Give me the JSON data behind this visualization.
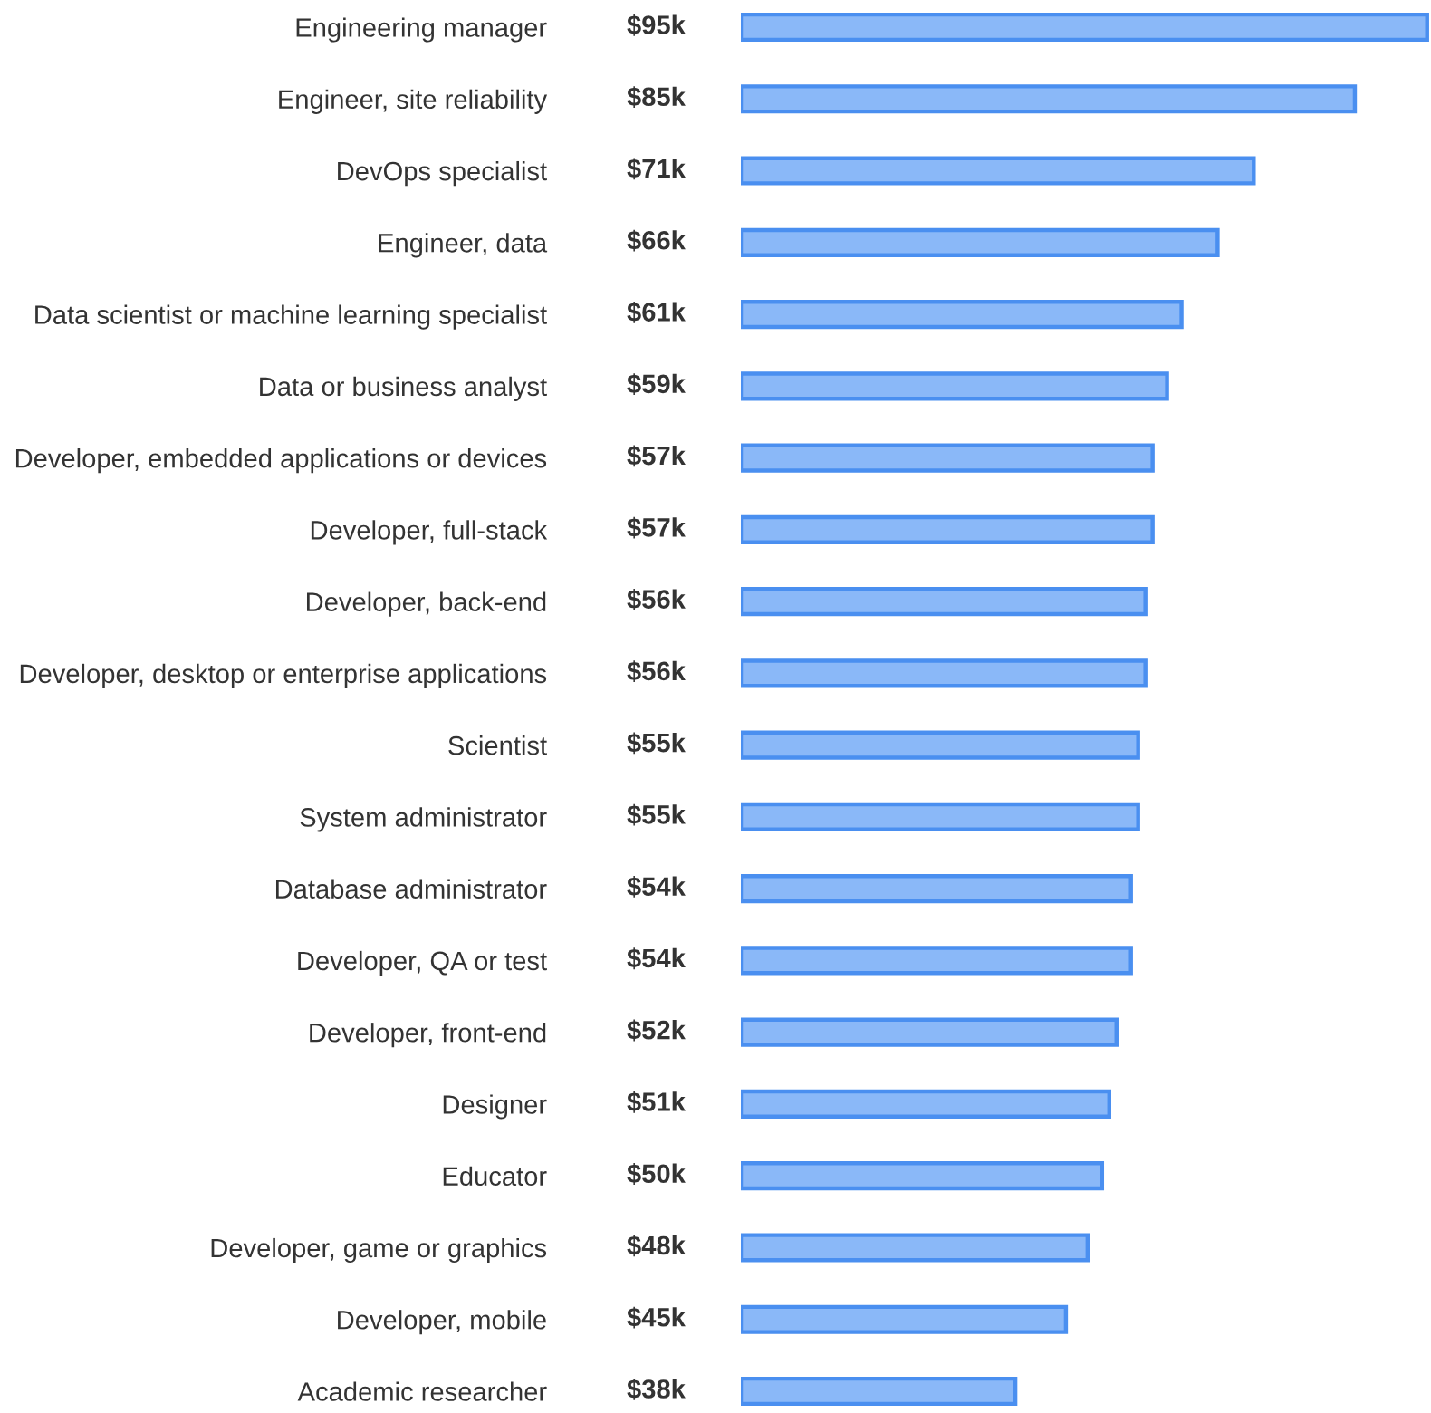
{
  "chart_data": {
    "type": "bar",
    "orientation": "horizontal",
    "color": "#8ab8f8",
    "categories": [
      "Engineering manager",
      "Engineer, site reliability",
      "DevOps specialist",
      "Engineer, data",
      "Data scientist or machine learning specialist",
      "Data or business analyst",
      "Developer, embedded applications or devices",
      "Developer, full-stack",
      "Developer, back-end",
      "Developer, desktop or enterprise applications",
      "Scientist",
      "System administrator",
      "Database administrator",
      "Developer, QA or test",
      "Developer, front-end",
      "Designer",
      "Educator",
      "Developer, game or graphics",
      "Developer, mobile",
      "Academic researcher"
    ],
    "values": [
      95,
      85,
      71,
      66,
      61,
      59,
      57,
      57,
      56,
      56,
      55,
      55,
      54,
      54,
      52,
      51,
      50,
      48,
      45,
      38
    ],
    "value_labels": [
      "$95k",
      "$85k",
      "$71k",
      "$66k",
      "$61k",
      "$59k",
      "$57k",
      "$57k",
      "$56k",
      "$56k",
      "$55k",
      "$55k",
      "$54k",
      "$54k",
      "$52k",
      "$51k",
      "$50k",
      "$48k",
      "$45k",
      "$38k"
    ],
    "grid": false
  }
}
